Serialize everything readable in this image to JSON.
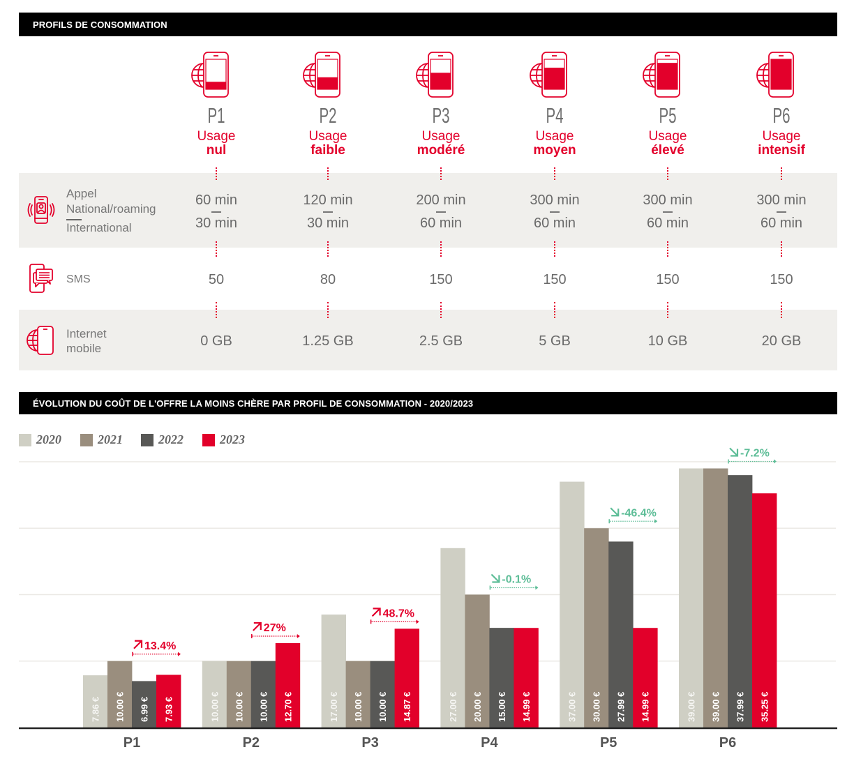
{
  "sections": {
    "profiles_title": "PROFILS DE CONSOMMATION",
    "chart_title": "ÉVOLUTION DU COÛT DE L'OFFRE LA MOINS CHÈRE PAR PROFIL DE CONSOMMATION - 2020/2023"
  },
  "rows": {
    "call": {
      "icon": "phone-call-icon",
      "label_line1": "Appel",
      "label_line2": "National/roaming",
      "label_line3": "International"
    },
    "sms": {
      "icon": "sms-icon",
      "label": "SMS"
    },
    "internet": {
      "icon": "mobile-internet-icon",
      "label_line1": "Internet",
      "label_line2": "mobile"
    }
  },
  "profiles": [
    {
      "code": "P1",
      "usage_prefix": "Usage",
      "usage": "nul",
      "usage_level": 0.25,
      "call_national": "60 min",
      "call_international": "30 min",
      "sms": "50",
      "internet": "0 GB"
    },
    {
      "code": "P2",
      "usage_prefix": "Usage",
      "usage": "faible",
      "usage_level": 0.4,
      "call_national": "120 min",
      "call_international": "30 min",
      "sms": "80",
      "internet": "1.25 GB"
    },
    {
      "code": "P3",
      "usage_prefix": "Usage",
      "usage": "modéré",
      "usage_level": 0.55,
      "call_national": "200 min",
      "call_international": "60 min",
      "sms": "150",
      "internet": "2.5 GB"
    },
    {
      "code": "P4",
      "usage_prefix": "Usage",
      "usage": "moyen",
      "usage_level": 0.72,
      "call_national": "300 min",
      "call_international": "60 min",
      "sms": "150",
      "internet": "5 GB"
    },
    {
      "code": "P5",
      "usage_prefix": "Usage",
      "usage": "élevé",
      "usage_level": 0.88,
      "call_national": "300 min",
      "call_international": "60 min",
      "sms": "150",
      "internet": "10 GB"
    },
    {
      "code": "P6",
      "usage_prefix": "Usage",
      "usage": "intensif",
      "usage_level": 1.0,
      "call_national": "300 min",
      "call_international": "60 min",
      "sms": "150",
      "internet": "20 GB"
    }
  ],
  "chart_data": {
    "type": "bar",
    "title": "ÉVOLUTION DU COÛT DE L'OFFRE LA MOINS CHÈRE PAR PROFIL DE CONSOMMATION - 2020/2023",
    "xlabel": "",
    "ylabel": "",
    "ylim": [
      0,
      40
    ],
    "gridlines": [
      10,
      20,
      30,
      40
    ],
    "grid": true,
    "legend": "top-left",
    "categories": [
      "P1",
      "P2",
      "P3",
      "P4",
      "P5",
      "P6"
    ],
    "series": [
      {
        "name": "2020",
        "color": "#cfcfc4",
        "values": [
          7.86,
          10.0,
          17.0,
          27.0,
          37.0,
          39.0
        ],
        "labels": [
          "7.86 €",
          "10.00 €",
          "17.00 €",
          "27.00 €",
          "37.00 €",
          "39.00 €"
        ]
      },
      {
        "name": "2021",
        "color": "#9a8e7e",
        "values": [
          10.0,
          10.0,
          10.0,
          20.0,
          30.0,
          39.0
        ],
        "labels": [
          "10.00 €",
          "10.00 €",
          "10.00 €",
          "20.00 €",
          "30.00 €",
          "39.00 €"
        ]
      },
      {
        "name": "2022",
        "color": "#585856",
        "values": [
          6.99,
          10.0,
          10.0,
          15.0,
          27.99,
          37.99
        ],
        "labels": [
          "6.99 €",
          "10.00 €",
          "10.00 €",
          "15.00 €",
          "27.99 €",
          "37.99 €"
        ]
      },
      {
        "name": "2023",
        "color": "#e2002a",
        "values": [
          7.93,
          12.7,
          14.87,
          14.99,
          14.99,
          35.25
        ],
        "labels": [
          "7.93 €",
          "12.70 €",
          "14.87 €",
          "14.99 €",
          "14.99 €",
          "35.25 €"
        ]
      }
    ],
    "annotations": [
      {
        "category": "P1",
        "from": "2022",
        "to": "2023",
        "label": "13.4%",
        "direction": "up"
      },
      {
        "category": "P2",
        "from": "2022",
        "to": "2023",
        "label": "27%",
        "direction": "up"
      },
      {
        "category": "P3",
        "from": "2022",
        "to": "2023",
        "label": "48.7%",
        "direction": "up"
      },
      {
        "category": "P4",
        "from": "2022",
        "to": "2023",
        "label": "-0.1%",
        "direction": "down"
      },
      {
        "category": "P5",
        "from": "2022",
        "to": "2023",
        "label": "-46.4%",
        "direction": "down"
      },
      {
        "category": "P6",
        "from": "2022",
        "to": "2023",
        "label": "-7.2%",
        "direction": "down"
      }
    ],
    "colors": {
      "increase": "#e3002b",
      "decrease": "#5dbd97"
    }
  }
}
